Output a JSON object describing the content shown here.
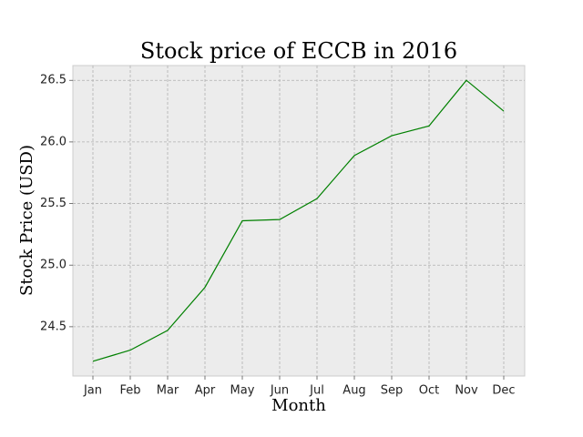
{
  "chart_data": {
    "type": "line",
    "title": "Stock price of ECCB in 2016",
    "xlabel": "Month",
    "ylabel": "Stock Price (USD)",
    "categories": [
      "Jan",
      "Feb",
      "Mar",
      "Apr",
      "May",
      "Jun",
      "Jul",
      "Aug",
      "Sep",
      "Oct",
      "Nov",
      "Dec"
    ],
    "series": [
      {
        "values": [
          24.22,
          24.31,
          24.47,
          24.82,
          25.36,
          25.37,
          25.54,
          25.89,
          26.05,
          26.13,
          26.5,
          26.25
        ]
      }
    ],
    "ylim": [
      24.1,
      26.62
    ],
    "yticks": [
      "24.5",
      "25.0",
      "25.5",
      "26.0",
      "26.5"
    ],
    "grid": true,
    "line_color": "#008000",
    "plot_background": "#ececec"
  }
}
